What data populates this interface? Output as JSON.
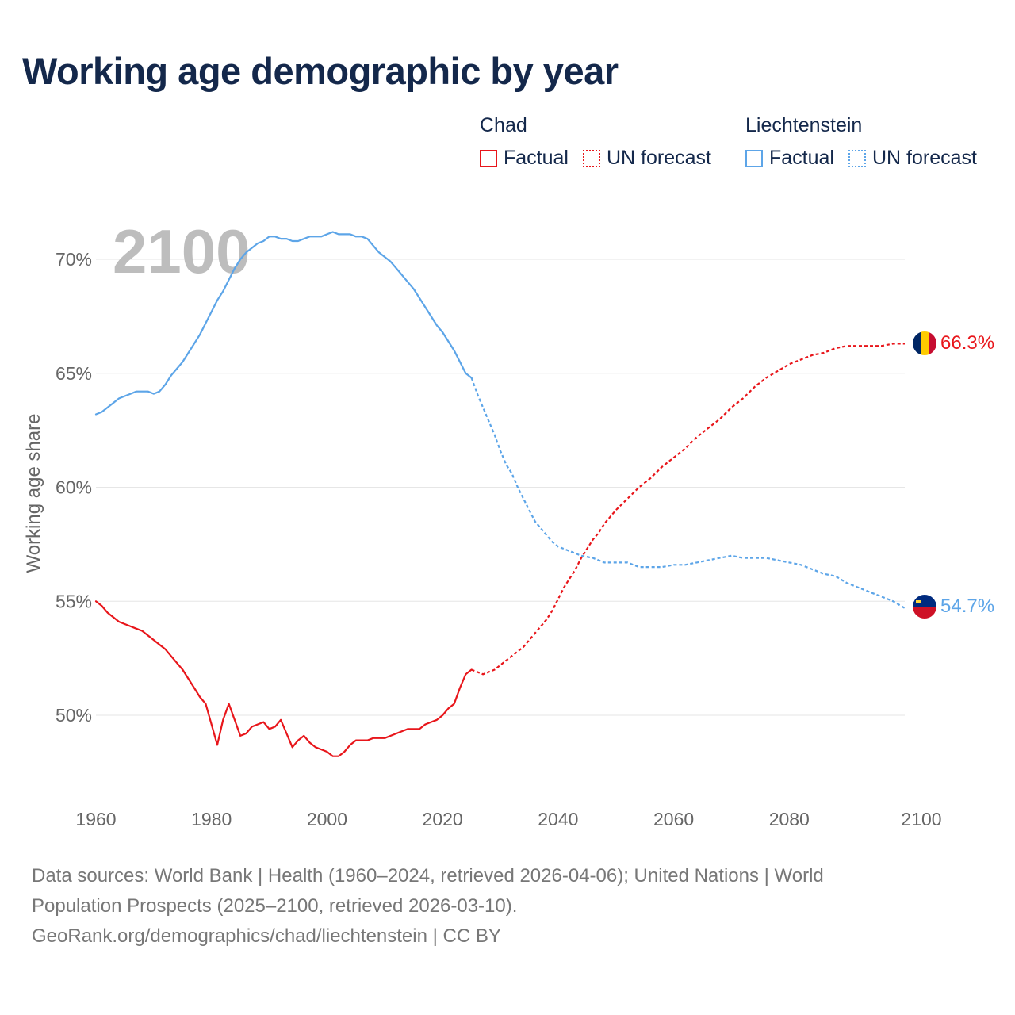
{
  "title": "Working age demographic by year",
  "legend": {
    "groups": [
      {
        "name": "Chad",
        "color": "#e8161b",
        "factual": "Factual",
        "forecast": "UN forecast"
      },
      {
        "name": "Liechtenstein",
        "color": "#5da5e8",
        "factual": "Factual",
        "forecast": "UN forecast"
      }
    ]
  },
  "footer": {
    "line1": "Data sources: World Bank | Health (1960–2024, retrieved 2026-04-06); United Nations | World",
    "line2": "Population Prospects (2025–2100, retrieved 2026-03-10).",
    "line3": "GeoRank.org/demographics/chad/liechtenstein | CC BY"
  },
  "chart_data": {
    "type": "line",
    "title": "Working age demographic by year",
    "watermark_year": "2100",
    "xlabel": "",
    "ylabel": "Working age share",
    "xlim": [
      1960,
      2100
    ],
    "ylim": [
      47,
      73
    ],
    "x_ticks": [
      1960,
      1980,
      2000,
      2020,
      2040,
      2060,
      2080,
      2100
    ],
    "y_ticks": [
      50,
      55,
      60,
      65,
      70
    ],
    "y_tick_labels": [
      "50%",
      "55%",
      "60%",
      "65%",
      "70%"
    ],
    "grid": true,
    "legend_position": "top-right",
    "series": [
      {
        "name": "Chad",
        "color": "#e8161b",
        "end_label": "66.3%",
        "factual": [
          [
            1960,
            55.0
          ],
          [
            1961,
            54.8
          ],
          [
            1962,
            54.5
          ],
          [
            1963,
            54.3
          ],
          [
            1964,
            54.1
          ],
          [
            1965,
            54.0
          ],
          [
            1966,
            53.9
          ],
          [
            1967,
            53.8
          ],
          [
            1968,
            53.7
          ],
          [
            1969,
            53.5
          ],
          [
            1970,
            53.3
          ],
          [
            1971,
            53.1
          ],
          [
            1972,
            52.9
          ],
          [
            1973,
            52.6
          ],
          [
            1974,
            52.3
          ],
          [
            1975,
            52.0
          ],
          [
            1976,
            51.6
          ],
          [
            1977,
            51.2
          ],
          [
            1978,
            50.8
          ],
          [
            1979,
            50.5
          ],
          [
            1980,
            49.6
          ],
          [
            1981,
            48.7
          ],
          [
            1982,
            49.8
          ],
          [
            1983,
            50.5
          ],
          [
            1984,
            49.8
          ],
          [
            1985,
            49.1
          ],
          [
            1986,
            49.2
          ],
          [
            1987,
            49.5
          ],
          [
            1988,
            49.6
          ],
          [
            1989,
            49.7
          ],
          [
            1990,
            49.4
          ],
          [
            1991,
            49.5
          ],
          [
            1992,
            49.8
          ],
          [
            1993,
            49.2
          ],
          [
            1994,
            48.6
          ],
          [
            1995,
            48.9
          ],
          [
            1996,
            49.1
          ],
          [
            1997,
            48.8
          ],
          [
            1998,
            48.6
          ],
          [
            1999,
            48.5
          ],
          [
            2000,
            48.4
          ],
          [
            2001,
            48.2
          ],
          [
            2002,
            48.2
          ],
          [
            2003,
            48.4
          ],
          [
            2004,
            48.7
          ],
          [
            2005,
            48.9
          ],
          [
            2006,
            48.9
          ],
          [
            2007,
            48.9
          ],
          [
            2008,
            49.0
          ],
          [
            2009,
            49.0
          ],
          [
            2010,
            49.0
          ],
          [
            2011,
            49.1
          ],
          [
            2012,
            49.2
          ],
          [
            2013,
            49.3
          ],
          [
            2014,
            49.4
          ],
          [
            2015,
            49.4
          ],
          [
            2016,
            49.4
          ],
          [
            2017,
            49.6
          ],
          [
            2018,
            49.7
          ],
          [
            2019,
            49.8
          ],
          [
            2020,
            50.0
          ],
          [
            2021,
            50.3
          ],
          [
            2022,
            50.5
          ],
          [
            2023,
            51.2
          ],
          [
            2024,
            51.8
          ],
          [
            2025,
            52.0
          ]
        ],
        "forecast": [
          [
            2025,
            52.0
          ],
          [
            2026,
            51.9
          ],
          [
            2027,
            51.8
          ],
          [
            2028,
            51.9
          ],
          [
            2029,
            52.0
          ],
          [
            2030,
            52.2
          ],
          [
            2031,
            52.4
          ],
          [
            2032,
            52.6
          ],
          [
            2033,
            52.8
          ],
          [
            2034,
            53.0
          ],
          [
            2035,
            53.3
          ],
          [
            2036,
            53.6
          ],
          [
            2037,
            53.9
          ],
          [
            2038,
            54.2
          ],
          [
            2039,
            54.6
          ],
          [
            2040,
            55.1
          ],
          [
            2041,
            55.6
          ],
          [
            2042,
            56.0
          ],
          [
            2043,
            56.4
          ],
          [
            2044,
            56.9
          ],
          [
            2045,
            57.3
          ],
          [
            2046,
            57.7
          ],
          [
            2047,
            58.0
          ],
          [
            2048,
            58.4
          ],
          [
            2049,
            58.7
          ],
          [
            2050,
            59.0
          ],
          [
            2052,
            59.5
          ],
          [
            2054,
            60.0
          ],
          [
            2056,
            60.4
          ],
          [
            2058,
            60.9
          ],
          [
            2060,
            61.3
          ],
          [
            2062,
            61.7
          ],
          [
            2064,
            62.2
          ],
          [
            2066,
            62.6
          ],
          [
            2068,
            63.0
          ],
          [
            2070,
            63.5
          ],
          [
            2072,
            63.9
          ],
          [
            2074,
            64.4
          ],
          [
            2076,
            64.8
          ],
          [
            2078,
            65.1
          ],
          [
            2080,
            65.4
          ],
          [
            2082,
            65.6
          ],
          [
            2084,
            65.8
          ],
          [
            2086,
            65.9
          ],
          [
            2088,
            66.1
          ],
          [
            2090,
            66.2
          ],
          [
            2092,
            66.2
          ],
          [
            2094,
            66.2
          ],
          [
            2096,
            66.2
          ],
          [
            2098,
            66.3
          ],
          [
            2100,
            66.3
          ]
        ]
      },
      {
        "name": "Liechtenstein",
        "color": "#5da5e8",
        "end_label": "54.7%",
        "factual": [
          [
            1960,
            63.2
          ],
          [
            1961,
            63.3
          ],
          [
            1962,
            63.5
          ],
          [
            1963,
            63.7
          ],
          [
            1964,
            63.9
          ],
          [
            1965,
            64.0
          ],
          [
            1966,
            64.1
          ],
          [
            1967,
            64.2
          ],
          [
            1968,
            64.2
          ],
          [
            1969,
            64.2
          ],
          [
            1970,
            64.1
          ],
          [
            1971,
            64.2
          ],
          [
            1972,
            64.5
          ],
          [
            1973,
            64.9
          ],
          [
            1974,
            65.2
          ],
          [
            1975,
            65.5
          ],
          [
            1976,
            65.9
          ],
          [
            1977,
            66.3
          ],
          [
            1978,
            66.7
          ],
          [
            1979,
            67.2
          ],
          [
            1980,
            67.7
          ],
          [
            1981,
            68.2
          ],
          [
            1982,
            68.6
          ],
          [
            1983,
            69.1
          ],
          [
            1984,
            69.6
          ],
          [
            1985,
            70.0
          ],
          [
            1986,
            70.3
          ],
          [
            1987,
            70.5
          ],
          [
            1988,
            70.7
          ],
          [
            1989,
            70.8
          ],
          [
            1990,
            71.0
          ],
          [
            1991,
            71.0
          ],
          [
            1992,
            70.9
          ],
          [
            1993,
            70.9
          ],
          [
            1994,
            70.8
          ],
          [
            1995,
            70.8
          ],
          [
            1996,
            70.9
          ],
          [
            1997,
            71.0
          ],
          [
            1998,
            71.0
          ],
          [
            1999,
            71.0
          ],
          [
            2000,
            71.1
          ],
          [
            2001,
            71.2
          ],
          [
            2002,
            71.1
          ],
          [
            2003,
            71.1
          ],
          [
            2004,
            71.1
          ],
          [
            2005,
            71.0
          ],
          [
            2006,
            71.0
          ],
          [
            2007,
            70.9
          ],
          [
            2008,
            70.6
          ],
          [
            2009,
            70.3
          ],
          [
            2010,
            70.1
          ],
          [
            2011,
            69.9
          ],
          [
            2012,
            69.6
          ],
          [
            2013,
            69.3
          ],
          [
            2014,
            69.0
          ],
          [
            2015,
            68.7
          ],
          [
            2016,
            68.3
          ],
          [
            2017,
            67.9
          ],
          [
            2018,
            67.5
          ],
          [
            2019,
            67.1
          ],
          [
            2020,
            66.8
          ],
          [
            2021,
            66.4
          ],
          [
            2022,
            66.0
          ],
          [
            2023,
            65.5
          ],
          [
            2024,
            65.0
          ],
          [
            2025,
            64.8
          ]
        ],
        "forecast": [
          [
            2025,
            64.8
          ],
          [
            2026,
            64.1
          ],
          [
            2027,
            63.5
          ],
          [
            2028,
            62.9
          ],
          [
            2029,
            62.3
          ],
          [
            2030,
            61.6
          ],
          [
            2031,
            61.0
          ],
          [
            2032,
            60.6
          ],
          [
            2033,
            60.0
          ],
          [
            2034,
            59.5
          ],
          [
            2035,
            59.0
          ],
          [
            2036,
            58.5
          ],
          [
            2037,
            58.2
          ],
          [
            2038,
            57.9
          ],
          [
            2039,
            57.6
          ],
          [
            2040,
            57.4
          ],
          [
            2042,
            57.2
          ],
          [
            2044,
            57.0
          ],
          [
            2046,
            56.9
          ],
          [
            2048,
            56.7
          ],
          [
            2050,
            56.7
          ],
          [
            2052,
            56.7
          ],
          [
            2054,
            56.5
          ],
          [
            2056,
            56.5
          ],
          [
            2058,
            56.5
          ],
          [
            2060,
            56.6
          ],
          [
            2062,
            56.6
          ],
          [
            2064,
            56.7
          ],
          [
            2066,
            56.8
          ],
          [
            2068,
            56.9
          ],
          [
            2070,
            57.0
          ],
          [
            2072,
            56.9
          ],
          [
            2074,
            56.9
          ],
          [
            2076,
            56.9
          ],
          [
            2078,
            56.8
          ],
          [
            2080,
            56.7
          ],
          [
            2082,
            56.6
          ],
          [
            2084,
            56.4
          ],
          [
            2086,
            56.2
          ],
          [
            2088,
            56.1
          ],
          [
            2090,
            55.8
          ],
          [
            2092,
            55.6
          ],
          [
            2094,
            55.4
          ],
          [
            2096,
            55.2
          ],
          [
            2098,
            55.0
          ],
          [
            2100,
            54.7
          ]
        ]
      }
    ]
  }
}
